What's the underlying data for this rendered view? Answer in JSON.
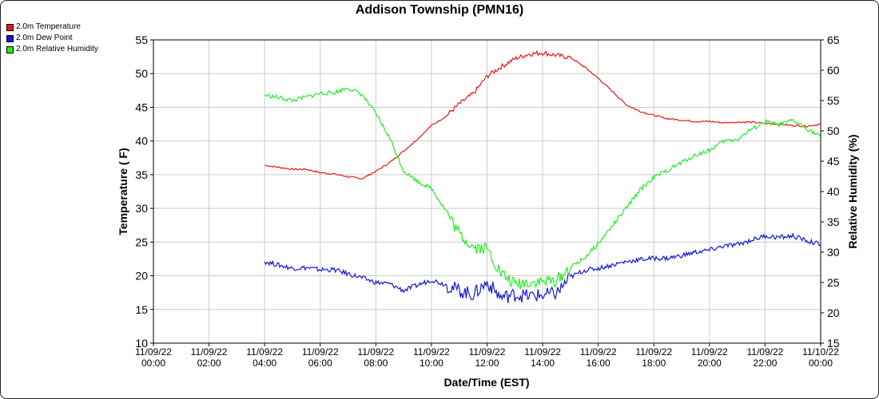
{
  "chart_data": {
    "type": "line",
    "title": "Addison Township (PMN16)",
    "xlabel": "Date/Time (EST)",
    "ylabel_left": "Temperature ( F)",
    "ylabel_right": "Relative Humidity (%)",
    "ylim_left": [
      10,
      55
    ],
    "ylim_right": [
      15,
      65
    ],
    "grid": true,
    "legend_position": "top-left",
    "x_ticks": [
      {
        "hour": 0,
        "line1": "11/09/22",
        "line2": "00:00"
      },
      {
        "hour": 2,
        "line1": "11/09/22",
        "line2": "02:00"
      },
      {
        "hour": 4,
        "line1": "11/09/22",
        "line2": "04:00"
      },
      {
        "hour": 6,
        "line1": "11/09/22",
        "line2": "06:00"
      },
      {
        "hour": 8,
        "line1": "11/09/22",
        "line2": "08:00"
      },
      {
        "hour": 10,
        "line1": "11/09/22",
        "line2": "10:00"
      },
      {
        "hour": 12,
        "line1": "11/09/22",
        "line2": "12:00"
      },
      {
        "hour": 14,
        "line1": "11/09/22",
        "line2": "14:00"
      },
      {
        "hour": 16,
        "line1": "11/09/22",
        "line2": "16:00"
      },
      {
        "hour": 18,
        "line1": "11/09/22",
        "line2": "18:00"
      },
      {
        "hour": 20,
        "line1": "11/09/22",
        "line2": "20:00"
      },
      {
        "hour": 22,
        "line1": "11/09/22",
        "line2": "22:00"
      },
      {
        "hour": 24,
        "line1": "11/10/22",
        "line2": "00:00"
      }
    ],
    "y_ticks_left": [
      10,
      15,
      20,
      25,
      30,
      35,
      40,
      45,
      50,
      55
    ],
    "y_ticks_right": [
      15,
      20,
      25,
      30,
      35,
      40,
      45,
      50,
      55,
      60,
      65
    ],
    "series": [
      {
        "name": "2.0m Temperature",
        "axis": "left",
        "color": "#e8191b",
        "points": [
          [
            4.0,
            36.4
          ],
          [
            4.5,
            36.1
          ],
          [
            5.0,
            35.8
          ],
          [
            5.5,
            35.8
          ],
          [
            6.0,
            35.3
          ],
          [
            6.5,
            35.1
          ],
          [
            7.0,
            34.7
          ],
          [
            7.5,
            34.4
          ],
          [
            8.0,
            35.5
          ],
          [
            8.5,
            36.8
          ],
          [
            9.0,
            38.5
          ],
          [
            9.5,
            40.3
          ],
          [
            10.0,
            42.3
          ],
          [
            10.5,
            43.6
          ],
          [
            11.0,
            45.5
          ],
          [
            11.5,
            47.0
          ],
          [
            12.0,
            49.6
          ],
          [
            12.5,
            51.0
          ],
          [
            13.0,
            52.2
          ],
          [
            13.5,
            52.9
          ],
          [
            14.0,
            53.1
          ],
          [
            14.5,
            52.7
          ],
          [
            15.0,
            52.4
          ],
          [
            15.5,
            51.0
          ],
          [
            16.0,
            49.3
          ],
          [
            16.5,
            47.4
          ],
          [
            17.0,
            45.4
          ],
          [
            17.5,
            44.4
          ],
          [
            18.0,
            43.8
          ],
          [
            18.5,
            43.3
          ],
          [
            19.0,
            43.1
          ],
          [
            19.5,
            42.9
          ],
          [
            20.0,
            42.9
          ],
          [
            20.5,
            42.7
          ],
          [
            21.0,
            42.8
          ],
          [
            21.5,
            42.8
          ],
          [
            22.0,
            42.6
          ],
          [
            22.5,
            42.5
          ],
          [
            23.0,
            42.3
          ],
          [
            23.5,
            42.2
          ],
          [
            24.0,
            42.5
          ]
        ]
      },
      {
        "name": "2.0m Dew Point",
        "axis": "left",
        "color": "#1616d6",
        "points": [
          [
            4.0,
            22.1
          ],
          [
            4.5,
            21.6
          ],
          [
            5.0,
            21.1
          ],
          [
            5.5,
            21.2
          ],
          [
            6.0,
            20.9
          ],
          [
            6.5,
            20.9
          ],
          [
            7.0,
            20.3
          ],
          [
            7.5,
            19.7
          ],
          [
            8.0,
            19.0
          ],
          [
            8.5,
            18.8
          ],
          [
            9.0,
            17.8
          ],
          [
            9.5,
            18.6
          ],
          [
            10.0,
            19.4
          ],
          [
            10.5,
            18.7
          ],
          [
            11.0,
            17.8
          ],
          [
            11.5,
            17.2
          ],
          [
            12.0,
            19.0
          ],
          [
            12.5,
            16.8
          ],
          [
            13.0,
            17.2
          ],
          [
            13.5,
            17.0
          ],
          [
            14.0,
            17.1
          ],
          [
            14.5,
            17.4
          ],
          [
            15.0,
            19.8
          ],
          [
            15.5,
            20.8
          ],
          [
            16.0,
            21.1
          ],
          [
            16.5,
            21.6
          ],
          [
            17.0,
            22.1
          ],
          [
            17.5,
            22.4
          ],
          [
            18.0,
            22.6
          ],
          [
            18.5,
            22.6
          ],
          [
            19.0,
            23.0
          ],
          [
            19.5,
            23.5
          ],
          [
            20.0,
            23.8
          ],
          [
            20.5,
            24.4
          ],
          [
            21.0,
            24.6
          ],
          [
            21.5,
            25.3
          ],
          [
            22.0,
            25.9
          ],
          [
            22.5,
            25.7
          ],
          [
            23.0,
            25.9
          ],
          [
            23.5,
            25.2
          ],
          [
            24.0,
            24.6
          ]
        ]
      },
      {
        "name": "2.0m Relative Humidity",
        "axis": "right",
        "color": "#22ee22",
        "points": [
          [
            4.0,
            55.9
          ],
          [
            4.5,
            55.5
          ],
          [
            5.0,
            55.0
          ],
          [
            5.5,
            55.6
          ],
          [
            6.0,
            56.2
          ],
          [
            6.5,
            56.3
          ],
          [
            7.0,
            57.1
          ],
          [
            7.5,
            56.0
          ],
          [
            8.0,
            52.8
          ],
          [
            8.5,
            48.8
          ],
          [
            9.0,
            43.4
          ],
          [
            9.5,
            41.7
          ],
          [
            10.0,
            40.5
          ],
          [
            10.5,
            37.0
          ],
          [
            11.0,
            33.0
          ],
          [
            11.5,
            30.9
          ],
          [
            12.0,
            30.6
          ],
          [
            12.5,
            26.5
          ],
          [
            13.0,
            24.7
          ],
          [
            13.5,
            25.1
          ],
          [
            14.0,
            25.1
          ],
          [
            14.5,
            25.3
          ],
          [
            15.0,
            27.5
          ],
          [
            15.5,
            29.0
          ],
          [
            16.0,
            31.4
          ],
          [
            16.5,
            34.3
          ],
          [
            17.0,
            37.2
          ],
          [
            17.5,
            40.3
          ],
          [
            18.0,
            42.3
          ],
          [
            18.5,
            43.5
          ],
          [
            19.0,
            44.8
          ],
          [
            19.5,
            46.0
          ],
          [
            20.0,
            46.8
          ],
          [
            20.5,
            48.3
          ],
          [
            21.0,
            48.6
          ],
          [
            21.5,
            50.2
          ],
          [
            22.0,
            51.5
          ],
          [
            22.5,
            51.0
          ],
          [
            23.0,
            51.7
          ],
          [
            23.5,
            50.4
          ],
          [
            24.0,
            49.0
          ]
        ]
      }
    ]
  }
}
